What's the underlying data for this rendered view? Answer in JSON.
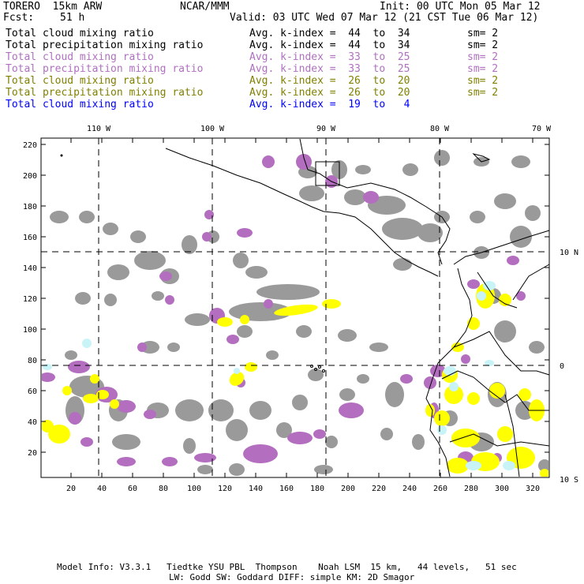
{
  "header": {
    "model": "TORERO  15km ARW",
    "org": "NCAR/MMM",
    "init": "Init: 00 UTC Mon 05 Mar 12",
    "fcst_label": "Fcst:",
    "fcst_value": "51 h",
    "valid": "Valid: 03 UTC Wed 07 Mar 12 (21 CST Tue 06 Mar 12)"
  },
  "legend": [
    {
      "field": "Total cloud mixing ratio",
      "range": "Avg. k-index =  44  to  34",
      "sm": "sm= 2",
      "color": "#000000"
    },
    {
      "field": "Total precipitation mixing ratio",
      "range": "Avg. k-index =  44  to  34",
      "sm": "sm= 2",
      "color": "#000000"
    },
    {
      "field": "Total cloud mixing ratio",
      "range": "Avg. k-index =  33  to  25",
      "sm": "sm= 2",
      "color": "#b070c0"
    },
    {
      "field": "Total precipitation mixing ratio",
      "range": "Avg. k-index =  33  to  25",
      "sm": "sm= 2",
      "color": "#b070c0"
    },
    {
      "field": "Total cloud mixing ratio",
      "range": "Avg. k-index =  26  to  20",
      "sm": "sm= 2",
      "color": "#808000"
    },
    {
      "field": "Total precipitation mixing ratio",
      "range": "Avg. k-index =  26  to  20",
      "sm": "sm= 2",
      "color": "#808000"
    },
    {
      "field": "Total cloud mixing ratio",
      "range": "Avg. k-index =  19  to   4",
      "sm": "",
      "color": "#0000ff"
    }
  ],
  "axes": {
    "top": [
      "110 W",
      "100 W",
      "90 W",
      "80 W",
      "70 W"
    ],
    "right": [
      "10 N",
      "0",
      "10 S"
    ],
    "left": [
      "220",
      "200",
      "180",
      "160",
      "140",
      "120",
      "100",
      "80",
      "60",
      "40",
      "20"
    ],
    "bottom": [
      "20",
      "40",
      "60",
      "80",
      "100",
      "120",
      "140",
      "160",
      "180",
      "200",
      "220",
      "240",
      "260",
      "280",
      "300",
      "320"
    ]
  },
  "colors": {
    "gray": "#9a9a9a",
    "purple": "#b46ec0",
    "yellow": "#ffff00",
    "cyan": "#c8f4f8"
  },
  "footer": {
    "line1": "Model Info: V3.3.1   Tiedtke YSU PBL  Thompson    Noah LSM  15 km,   44 levels,   51 sec",
    "line2": "LW: Godd SW: Goddard DIFF: simple KM: 2D Smagor"
  }
}
